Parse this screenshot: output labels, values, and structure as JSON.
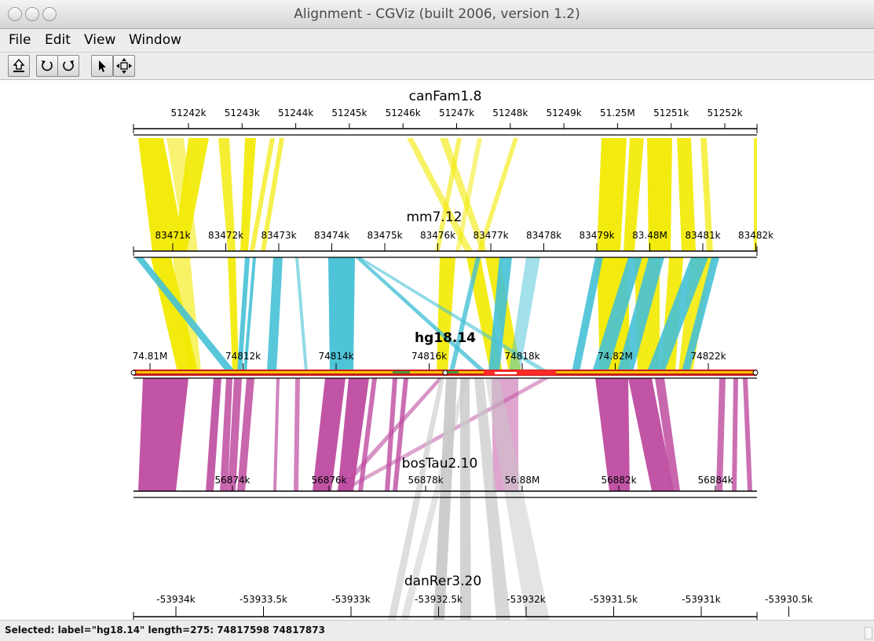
{
  "window": {
    "title": "Alignment - CGViz (built 2006, version 1.2)"
  },
  "menu": {
    "file": "File",
    "edit": "Edit",
    "view": "View",
    "window": "Window"
  },
  "toolbar": {
    "tools": [
      "export-icon",
      "rotate-left-icon",
      "rotate-right-icon",
      "pointer-icon",
      "zoom-fit-icon"
    ]
  },
  "tracks": [
    {
      "name": "canFam1.8",
      "ticks": [
        "51242k",
        "51243k",
        "51244k",
        "51245k",
        "51246k",
        "51247k",
        "51248k",
        "51249k",
        "51.25M",
        "51251k",
        "51252k"
      ]
    },
    {
      "name": "mm7.12",
      "ticks": [
        "83471k",
        "83472k",
        "83473k",
        "83474k",
        "83475k",
        "83476k",
        "83477k",
        "83478k",
        "83479k",
        "83.48M",
        "83481k",
        "83482k"
      ]
    },
    {
      "name": "hg18.14",
      "ticks": [
        "74.81M",
        "74812k",
        "74814k",
        "74816k",
        "74818k",
        "74.82M",
        "74822k"
      ]
    },
    {
      "name": "bosTau2.10",
      "ticks": [
        "56874k",
        "56876k",
        "56878k",
        "56.88M",
        "56882k",
        "56884k"
      ]
    },
    {
      "name": "danRer3.20",
      "ticks": [
        "-53934k",
        "-53933.5k",
        "-53933k",
        "-53932.5k",
        "-53932k",
        "-53931.5k",
        "-53931k",
        "-53930.5k"
      ]
    }
  ],
  "colors": {
    "canFam_mm": "#f2ea00",
    "mm_hg": "#46c1d6",
    "hg_bos": "#be4ba0",
    "bos_dan": "#c8c8c8",
    "hg_track": "#c81e1e",
    "hg_sub": "#f5c400"
  },
  "status": {
    "text": "Selected: label=\"hg18.14\" length=275:  74817598 74817873"
  }
}
